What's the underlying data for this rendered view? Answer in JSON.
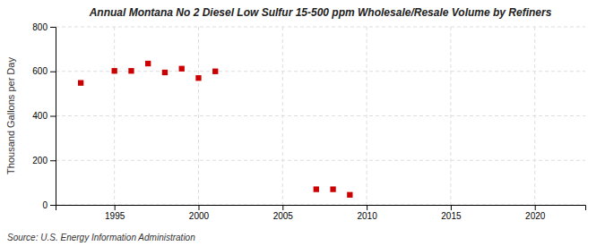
{
  "chart_data": {
    "type": "scatter",
    "title": "Annual Montana No 2 Diesel Low Sulfur 15-500 ppm Wholesale/Resale Volume by Refiners",
    "ylabel": "Thousand Gallons per Day",
    "source": "Source: U.S. Energy Information Administration",
    "x": [
      1993,
      1995,
      1996,
      1997,
      1998,
      1999,
      2000,
      2001,
      2007,
      2008,
      2009
    ],
    "values": [
      548,
      602,
      602,
      635,
      595,
      612,
      570,
      600,
      70,
      70,
      45
    ],
    "color": "#cc0000",
    "marker": "square",
    "xlim": [
      1991.5,
      2023
    ],
    "ylim": [
      0,
      800
    ],
    "xticks": [
      1995,
      2000,
      2005,
      2010,
      2015,
      2020
    ],
    "yticks": [
      0,
      200,
      400,
      600,
      800
    ],
    "grid": true
  }
}
